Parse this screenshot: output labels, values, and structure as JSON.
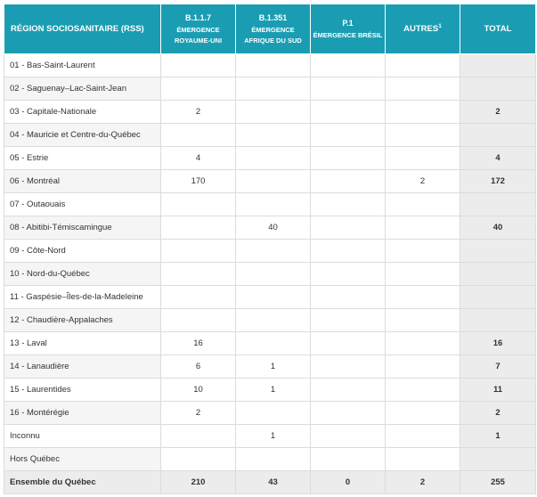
{
  "header": {
    "region": "RÉGION SOCIOSANITAIRE (RSS)",
    "col1_code": "B.1.1.7",
    "col1_sub": "ÉMERGENCE ROYAUME-UNI",
    "col2_code": "B.1.351",
    "col2_sub": "ÉMERGENCE AFRIQUE DU SUD",
    "col3_code": "P.1",
    "col3_sub": "ÉMERGENCE BRÉSIL",
    "col4": "AUTRES",
    "col4_sup": "1",
    "col5": "TOTAL"
  },
  "rows": [
    {
      "name": "01 - Bas-Saint-Laurent",
      "b117": "",
      "b1351": "",
      "p1": "",
      "autres": "",
      "total": ""
    },
    {
      "name": "02 - Saguenay–Lac-Saint-Jean",
      "b117": "",
      "b1351": "",
      "p1": "",
      "autres": "",
      "total": ""
    },
    {
      "name": "03 - Capitale-Nationale",
      "b117": "2",
      "b1351": "",
      "p1": "",
      "autres": "",
      "total": "2"
    },
    {
      "name": "04 - Mauricie et Centre-du-Québec",
      "b117": "",
      "b1351": "",
      "p1": "",
      "autres": "",
      "total": ""
    },
    {
      "name": "05 - Estrie",
      "b117": "4",
      "b1351": "",
      "p1": "",
      "autres": "",
      "total": "4"
    },
    {
      "name": "06 - Montréal",
      "b117": "170",
      "b1351": "",
      "p1": "",
      "autres": "2",
      "total": "172"
    },
    {
      "name": "07 - Outaouais",
      "b117": "",
      "b1351": "",
      "p1": "",
      "autres": "",
      "total": ""
    },
    {
      "name": "08 - Abitibi-Témiscamingue",
      "b117": "",
      "b1351": "40",
      "p1": "",
      "autres": "",
      "total": "40"
    },
    {
      "name": "09 - Côte-Nord",
      "b117": "",
      "b1351": "",
      "p1": "",
      "autres": "",
      "total": ""
    },
    {
      "name": "10 - Nord-du-Québec",
      "b117": "",
      "b1351": "",
      "p1": "",
      "autres": "",
      "total": ""
    },
    {
      "name": "11 - Gaspésie–Îles-de-la-Madeleine",
      "b117": "",
      "b1351": "",
      "p1": "",
      "autres": "",
      "total": ""
    },
    {
      "name": "12 - Chaudière-Appalaches",
      "b117": "",
      "b1351": "",
      "p1": "",
      "autres": "",
      "total": ""
    },
    {
      "name": "13 - Laval",
      "b117": "16",
      "b1351": "",
      "p1": "",
      "autres": "",
      "total": "16"
    },
    {
      "name": "14 - Lanaudière",
      "b117": "6",
      "b1351": "1",
      "p1": "",
      "autres": "",
      "total": "7"
    },
    {
      "name": "15 - Laurentides",
      "b117": "10",
      "b1351": "1",
      "p1": "",
      "autres": "",
      "total": "11"
    },
    {
      "name": "16 - Montérégie",
      "b117": "2",
      "b1351": "",
      "p1": "",
      "autres": "",
      "total": "2"
    },
    {
      "name": "Inconnu",
      "b117": "",
      "b1351": "1",
      "p1": "",
      "autres": "",
      "total": "1"
    },
    {
      "name": "Hors Québec",
      "b117": "",
      "b1351": "",
      "p1": "",
      "autres": "",
      "total": ""
    }
  ],
  "summary": {
    "name": "Ensemble du Québec",
    "b117": "210",
    "b1351": "43",
    "p1": "0",
    "autres": "2",
    "total": "255"
  },
  "colors": {
    "header": "#1a9db3",
    "stripe": "#f5f5f5",
    "total_bg": "#ececec"
  }
}
